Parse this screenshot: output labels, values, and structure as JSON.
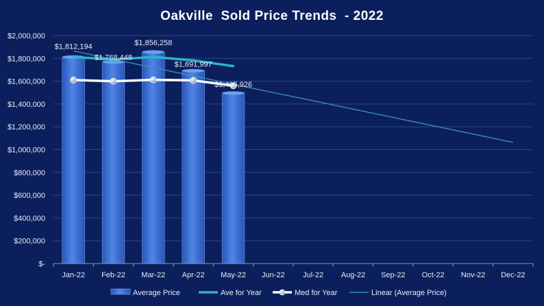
{
  "chart_data": {
    "type": "bar",
    "title": "Oakville  Sold Price Trends  - 2022",
    "xlabel": "",
    "ylabel": "",
    "ylim": [
      0,
      2000000
    ],
    "y_ticks": [
      "$-",
      "$200,000",
      "$400,000",
      "$600,000",
      "$800,000",
      "$1,000,000",
      "$1,200,000",
      "$1,400,000",
      "$1,600,000",
      "$1,800,000",
      "$2,000,000"
    ],
    "y_tick_values": [
      0,
      200000,
      400000,
      600000,
      800000,
      1000000,
      1200000,
      1400000,
      1600000,
      1800000,
      2000000
    ],
    "categories": [
      "Jan-22",
      "Feb-22",
      "Mar-22",
      "Apr-22",
      "May-22",
      "Jun-22",
      "Jul-22",
      "Aug-22",
      "Sep-22",
      "Oct-22",
      "Nov-22",
      "Dec-22"
    ],
    "series": [
      {
        "name": "Average Price",
        "kind": "bar",
        "color": "#3a6fd8",
        "values": [
          1812194,
          1768448,
          1856258,
          1691997,
          1495926,
          null,
          null,
          null,
          null,
          null,
          null,
          null
        ],
        "labels": [
          "$1,812,194",
          "$1,768,448",
          "$1,856,258",
          "$1,691,997",
          "$1,495,926"
        ]
      },
      {
        "name": "Ave for Year",
        "kind": "line",
        "color": "#2ab3c8",
        "values": [
          1812194,
          1790321,
          1812300,
          1782224,
          1732000,
          null,
          null,
          null,
          null,
          null,
          null,
          null
        ]
      },
      {
        "name": "Med for Year",
        "kind": "line-marker",
        "color": "#ffffff",
        "values": [
          1610000,
          1600000,
          1612000,
          1607000,
          1560000,
          null,
          null,
          null,
          null,
          null,
          null,
          null
        ]
      },
      {
        "name": "Linear (Average Price)",
        "kind": "trendline",
        "color": "#3d8fb0",
        "values": [
          1865000,
          1792000,
          1719000,
          1646000,
          1573000,
          1500000,
          1428000,
          1355000,
          1282000,
          1209000,
          1136000,
          1063000
        ]
      }
    ],
    "grid": true,
    "legend": "bottom"
  }
}
